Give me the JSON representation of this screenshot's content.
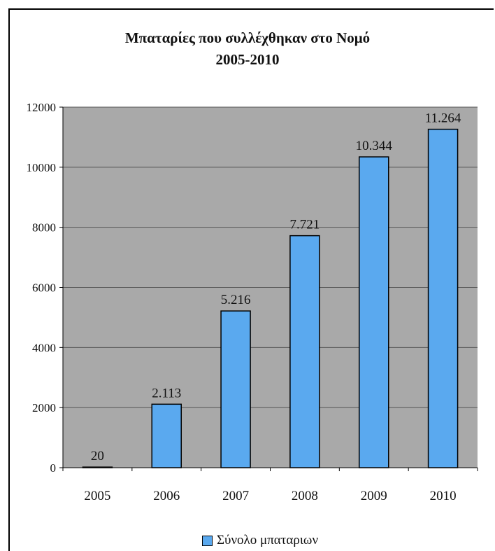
{
  "chart_data": {
    "type": "bar",
    "title": "Μπαταρίες που συλλέχθηκαν στο Νομό",
    "subtitle": "2005-2010",
    "categories": [
      "2005",
      "2006",
      "2007",
      "2008",
      "2009",
      "2010"
    ],
    "series": [
      {
        "name": "Σύνολο μπαταριων",
        "values": [
          20,
          2113,
          5216,
          7721,
          10344,
          11264
        ],
        "labels": [
          "20",
          "2.113",
          "5.216",
          "7.721",
          "10.344",
          "11.264"
        ]
      }
    ],
    "yticks": [
      "0",
      "2000",
      "4000",
      "6000",
      "8000",
      "10000",
      "12000"
    ],
    "ylim": [
      0,
      12000
    ],
    "grid": true,
    "legend": "bottom",
    "colors": {
      "plot_bg": "#a9a9a9",
      "bar": "#5aa9ef",
      "grid": "#555555"
    }
  }
}
